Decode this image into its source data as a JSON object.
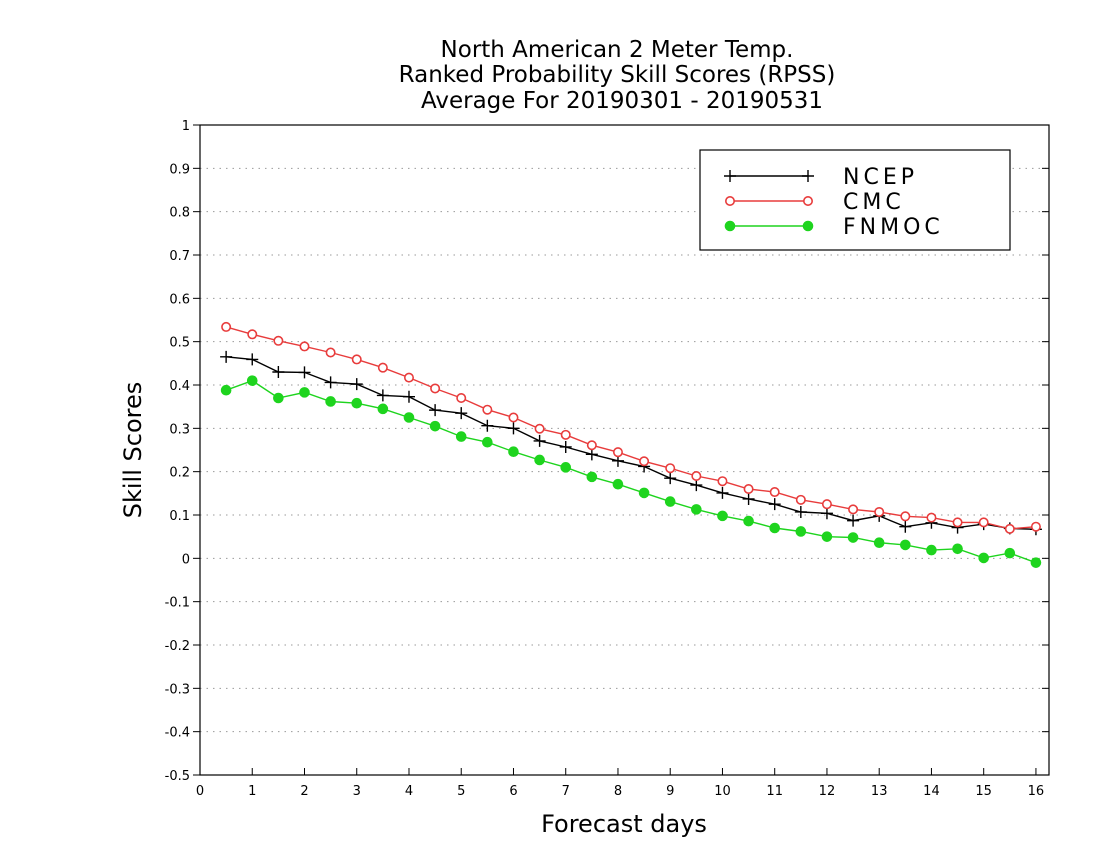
{
  "chart_data": {
    "type": "line",
    "title_lines": [
      "North American 2 Meter Temp.",
      "Ranked Probability Skill Scores (RPSS)",
      "Average For 20190301 - 20190531"
    ],
    "xlabel": "Forecast days",
    "ylabel": "Skill Scores",
    "xlim": [
      0,
      16.25
    ],
    "ylim": [
      -0.5,
      1
    ],
    "xticks": [
      0,
      1,
      2,
      3,
      4,
      5,
      6,
      7,
      8,
      9,
      10,
      11,
      12,
      13,
      14,
      15,
      16
    ],
    "yticks": [
      -0.5,
      -0.4,
      -0.3,
      -0.2,
      -0.1,
      0,
      0.1,
      0.2,
      0.3,
      0.4,
      0.5,
      0.6,
      0.7,
      0.8,
      0.9,
      1
    ],
    "ytick_labels": [
      "-0.5",
      "-0.4",
      "-0.3",
      "-0.2",
      "-0.1",
      "0",
      "0.1",
      "0.2",
      "0.3",
      "0.4",
      "0.5",
      "0.6",
      "0.7",
      "0.8",
      "0.9",
      "1"
    ],
    "grid": true,
    "legend_position": "top-right",
    "x": [
      0.5,
      1,
      1.5,
      2,
      2.5,
      3,
      3.5,
      4,
      4.5,
      5,
      5.5,
      6,
      6.5,
      7,
      7.5,
      8,
      8.5,
      9,
      9.5,
      10,
      10.5,
      11,
      11.5,
      12,
      12.5,
      13,
      13.5,
      14,
      14.5,
      15,
      15.5,
      16
    ],
    "series": [
      {
        "name": "NCEP",
        "color": "#000000",
        "marker": "plus",
        "values": [
          0.465,
          0.459,
          0.43,
          0.429,
          0.406,
          0.402,
          0.376,
          0.373,
          0.342,
          0.335,
          0.306,
          0.3,
          0.271,
          0.257,
          0.24,
          0.225,
          0.212,
          0.185,
          0.169,
          0.151,
          0.137,
          0.125,
          0.107,
          0.104,
          0.087,
          0.098,
          0.073,
          0.082,
          0.071,
          0.079,
          0.069,
          0.067
        ]
      },
      {
        "name": "CMC",
        "color": "#e83c3c",
        "marker": "open-circle",
        "values": [
          0.534,
          0.517,
          0.502,
          0.489,
          0.475,
          0.459,
          0.44,
          0.417,
          0.392,
          0.37,
          0.343,
          0.325,
          0.299,
          0.285,
          0.261,
          0.245,
          0.224,
          0.208,
          0.19,
          0.178,
          0.16,
          0.153,
          0.135,
          0.125,
          0.113,
          0.107,
          0.097,
          0.094,
          0.083,
          0.083,
          0.068,
          0.073
        ]
      },
      {
        "name": "FNMOC",
        "color": "#1ed41e",
        "marker": "filled-circle",
        "values": [
          0.388,
          0.41,
          0.37,
          0.383,
          0.362,
          0.358,
          0.345,
          0.325,
          0.305,
          0.281,
          0.268,
          0.246,
          0.227,
          0.21,
          0.188,
          0.171,
          0.151,
          0.131,
          0.113,
          0.098,
          0.086,
          0.07,
          0.062,
          0.05,
          0.048,
          0.036,
          0.031,
          0.019,
          0.022,
          0.001,
          0.012,
          -0.01
        ]
      }
    ]
  }
}
